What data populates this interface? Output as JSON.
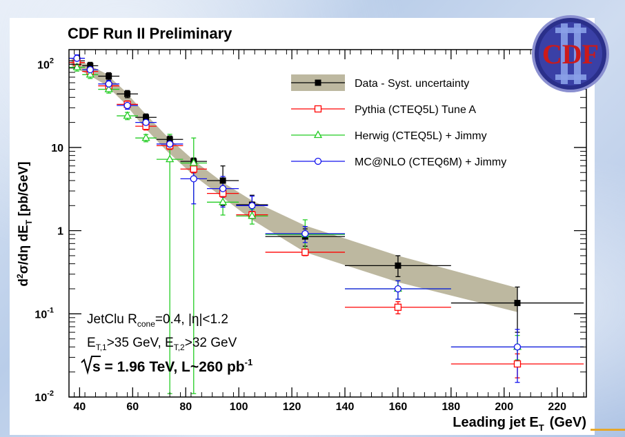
{
  "chart_data": {
    "type": "scatter",
    "title": "CDF Run II Preliminary",
    "logo_text": "CDF",
    "xlabel_main": "Leading jet E",
    "xlabel_sub": "T",
    "xlabel_unit": "(GeV)",
    "ylabel": "d²σ/dη dE_T  [pb/GeV]",
    "xlim": [
      36,
      231
    ],
    "ylim": [
      0.01,
      150
    ],
    "yscale": "log",
    "x_ticks": [
      "40",
      "60",
      "80",
      "100",
      "120",
      "140",
      "160",
      "180",
      "200",
      "220"
    ],
    "y_ticks": [
      {
        "base": "10",
        "exp": "2"
      },
      {
        "base": "10",
        "exp": ""
      },
      {
        "base": "1",
        "exp": ""
      },
      {
        "base": "10",
        "exp": "-1"
      },
      {
        "base": "10",
        "exp": "-2"
      }
    ],
    "band": {
      "name": "Data - Syst. uncertainty",
      "color": "#bdb8a0",
      "x": [
        37,
        43,
        50,
        57,
        64,
        73,
        83,
        94,
        105,
        125,
        160,
        205
      ],
      "low": [
        95,
        76,
        56,
        34,
        18,
        9.0,
        4.6,
        2.5,
        1.35,
        0.55,
        0.24,
        0.105
      ],
      "high": [
        120,
        100,
        77,
        48,
        27,
        13.5,
        7.0,
        3.8,
        2.3,
        1.15,
        0.5,
        0.205
      ]
    },
    "series": [
      {
        "name": "Data - Syst. uncertainty",
        "color": "#000000",
        "marker": "square-filled",
        "x": [
          39,
          44,
          51,
          58,
          65,
          74,
          83,
          94,
          105,
          125,
          160,
          205
        ],
        "y": [
          110,
          96,
          72,
          44,
          23,
          12.5,
          6.8,
          4.0,
          2.05,
          0.85,
          0.38,
          0.135
        ],
        "xerr": [
          3,
          3,
          4,
          4,
          4,
          5,
          5,
          6,
          6,
          15,
          20,
          25
        ],
        "yerr_lo": [
          0.1,
          0.1,
          0.1,
          0.1,
          0.1,
          0.1,
          0.1,
          0.5,
          0.3,
          0.2,
          0.1,
          0.075
        ],
        "yerr_hi": [
          0.1,
          0.1,
          0.1,
          0.1,
          0.1,
          0.1,
          0.1,
          0.5,
          0.3,
          0.2,
          0.12,
          0.075
        ]
      },
      {
        "name": "Pythia (CTEQ5L) Tune A",
        "color": "#ff0000",
        "marker": "square-open",
        "x": [
          39,
          44,
          51,
          58,
          65,
          74,
          83,
          94,
          105,
          125,
          160,
          205
        ],
        "y": [
          105,
          82,
          55,
          33,
          18,
          10.5,
          5.5,
          2.8,
          1.55,
          0.55,
          0.12,
          0.025
        ],
        "xerr": [
          3,
          3,
          4,
          4,
          4,
          5,
          5,
          6,
          6,
          15,
          20,
          25
        ],
        "yerr_lo": [
          0.1,
          0.1,
          0.1,
          0.1,
          0.1,
          0.1,
          0.1,
          0.1,
          0.1,
          0.05,
          0.02,
          0.008
        ],
        "yerr_hi": [
          0.1,
          0.1,
          0.1,
          0.1,
          0.1,
          0.1,
          0.1,
          0.1,
          0.1,
          0.05,
          0.02,
          0.008
        ]
      },
      {
        "name": "Herwig (CTEQ5L) + Jimmy",
        "color": "#22cc22",
        "marker": "triangle-open",
        "x": [
          39,
          44,
          51,
          58,
          65,
          74,
          83,
          94,
          105,
          125,
          160,
          205
        ],
        "y": [
          92,
          75,
          50,
          24,
          13,
          7.2,
          6.5,
          2.2,
          1.5,
          0.9,
          0.2,
          0.04
        ],
        "xerr": [
          3,
          3,
          4,
          4,
          4,
          5,
          5,
          6,
          6,
          15,
          20,
          25
        ],
        "yerr_lo": [
          0.1,
          0.1,
          0.1,
          0.1,
          0.1,
          1.0,
          1.0,
          0.3,
          0.2,
          0.3,
          0.05,
          0.012
        ],
        "yerr_hi": [
          0.1,
          0.1,
          0.1,
          0.1,
          0.1,
          1.0,
          1.0,
          0.3,
          0.2,
          0.45,
          0.05,
          0.015
        ]
      },
      {
        "name": "MC@NLO (CTEQ6M) + Jimmy",
        "color": "#1010ee",
        "marker": "circle-open",
        "x": [
          39,
          44,
          51,
          58,
          65,
          74,
          83,
          94,
          105,
          125,
          160,
          205
        ],
        "y": [
          118,
          86,
          58,
          32,
          20,
          11,
          4.2,
          3.2,
          2.0,
          0.92,
          0.2,
          0.04
        ],
        "xerr": [
          3,
          3,
          4,
          4,
          4,
          5,
          5,
          6,
          6,
          15,
          20,
          25
        ],
        "yerr_lo": [
          0.1,
          0.1,
          0.1,
          0.1,
          0.1,
          0.1,
          0.5,
          0.4,
          0.3,
          0.2,
          0.05,
          0.025
        ],
        "yerr_hi": [
          0.1,
          0.1,
          0.1,
          0.1,
          0.1,
          0.1,
          0.5,
          0.4,
          0.3,
          0.2,
          0.05,
          0.025
        ]
      }
    ],
    "annotations": {
      "line1_a": "JetClu R",
      "line1_sub": "cone",
      "line1_b": "=0.4, |η|<1.2",
      "line2_a": "E",
      "line2_sub1": "T,1",
      "line2_b": ">35 GeV, E",
      "line2_sub2": "T,2",
      "line2_c": ">32 GeV",
      "line3_a": "s = 1.96 TeV, L~260 pb",
      "line3_sup": "-1"
    },
    "legend_placement": "top-right",
    "grid": false
  }
}
